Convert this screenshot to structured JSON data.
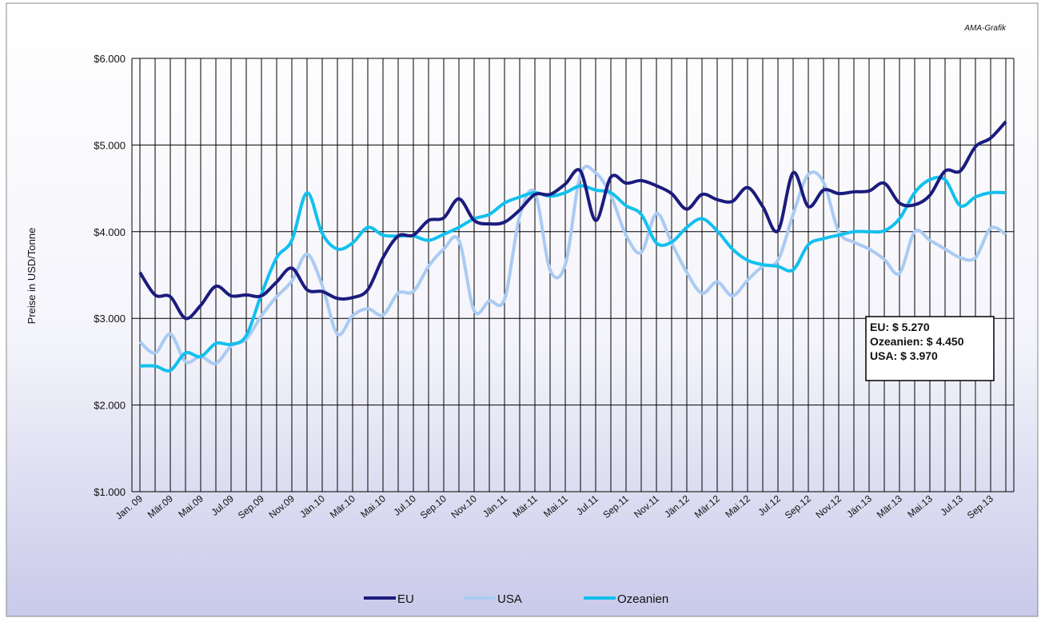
{
  "chart_data": {
    "type": "line",
    "source": "AMA-Grafik",
    "y_label": "Preise in USD/Tonne",
    "categories": [
      "Jan. 09",
      null,
      "Mär.09",
      null,
      "Mai.09",
      null,
      "Jul.09",
      null,
      "Sep.09",
      null,
      "Nov.09",
      null,
      "Jän.10",
      null,
      "Mär.10",
      null,
      "Mai.10",
      null,
      "Jul.10",
      null,
      "Sep.10",
      null,
      "Nov.10",
      null,
      "Jän.11",
      null,
      "Mär.11",
      null,
      "Mai.11",
      null,
      "Jul.11",
      null,
      "Sep.11",
      null,
      "Nov.11",
      null,
      "Jän.12",
      null,
      "Mär.12",
      null,
      "Mai.12",
      null,
      "Jul.12",
      null,
      "Sep.12",
      null,
      "Nov.12",
      null,
      "Jän.13",
      null,
      "Mär.13",
      null,
      "Mai.13",
      null,
      "Jul.13",
      null,
      "Sep.13",
      null
    ],
    "series": [
      {
        "name": "EU",
        "color": "#1b1b7e",
        "values": [
          3530,
          3270,
          3250,
          3000,
          3150,
          3370,
          3260,
          3270,
          3260,
          3420,
          3580,
          3330,
          3310,
          3230,
          3240,
          3330,
          3700,
          3950,
          3960,
          4130,
          4160,
          4380,
          4130,
          4090,
          4110,
          4250,
          4430,
          4430,
          4550,
          4700,
          4130,
          4630,
          4560,
          4590,
          4530,
          4440,
          4260,
          4430,
          4370,
          4350,
          4510,
          4290,
          4010,
          4680,
          4290,
          4480,
          4440,
          4460,
          4470,
          4560,
          4330,
          4310,
          4420,
          4700,
          4700,
          4980,
          5080,
          5270
        ]
      },
      {
        "name": "USA",
        "color": "#aacbf2",
        "values": [
          2730,
          2600,
          2820,
          2500,
          2560,
          2480,
          2680,
          2760,
          3030,
          3250,
          3430,
          3740,
          3380,
          2820,
          3030,
          3110,
          3040,
          3290,
          3310,
          3600,
          3800,
          3900,
          3090,
          3200,
          3220,
          4180,
          4450,
          3560,
          3620,
          4660,
          4680,
          4420,
          3960,
          3760,
          4210,
          3870,
          3530,
          3290,
          3420,
          3260,
          3440,
          3600,
          3670,
          4200,
          4660,
          4570,
          4000,
          3880,
          3800,
          3680,
          3520,
          4000,
          3900,
          3800,
          3700,
          3700,
          4040,
          3970
        ]
      },
      {
        "name": "Ozeanien",
        "color": "#12c0ee",
        "values": [
          2450,
          2450,
          2400,
          2600,
          2560,
          2710,
          2700,
          2800,
          3280,
          3700,
          3900,
          4450,
          3980,
          3800,
          3870,
          4050,
          3960,
          3950,
          3950,
          3900,
          3970,
          4050,
          4150,
          4200,
          4330,
          4400,
          4450,
          4410,
          4450,
          4530,
          4480,
          4450,
          4300,
          4200,
          3870,
          3880,
          4050,
          4150,
          4010,
          3800,
          3670,
          3620,
          3600,
          3560,
          3850,
          3920,
          3960,
          4000,
          4000,
          4010,
          4150,
          4450,
          4600,
          4600,
          4300,
          4400,
          4450,
          4450
        ]
      }
    ],
    "annotation": [
      "EU: $ 5.270",
      "Ozeanien: $ 4.450",
      "USA: $ 3.970"
    ],
    "ylim": [
      1000,
      6000
    ],
    "yticks": [
      {
        "value": 1000,
        "label": "$1.000"
      },
      {
        "value": 2000,
        "label": "$2.000"
      },
      {
        "value": 3000,
        "label": "$3.000"
      },
      {
        "value": 4000,
        "label": "$4.000"
      },
      {
        "value": 5000,
        "label": "$5.000"
      },
      {
        "value": 6000,
        "label": "$6.000"
      }
    ],
    "grid": true,
    "legend": "bottom"
  }
}
